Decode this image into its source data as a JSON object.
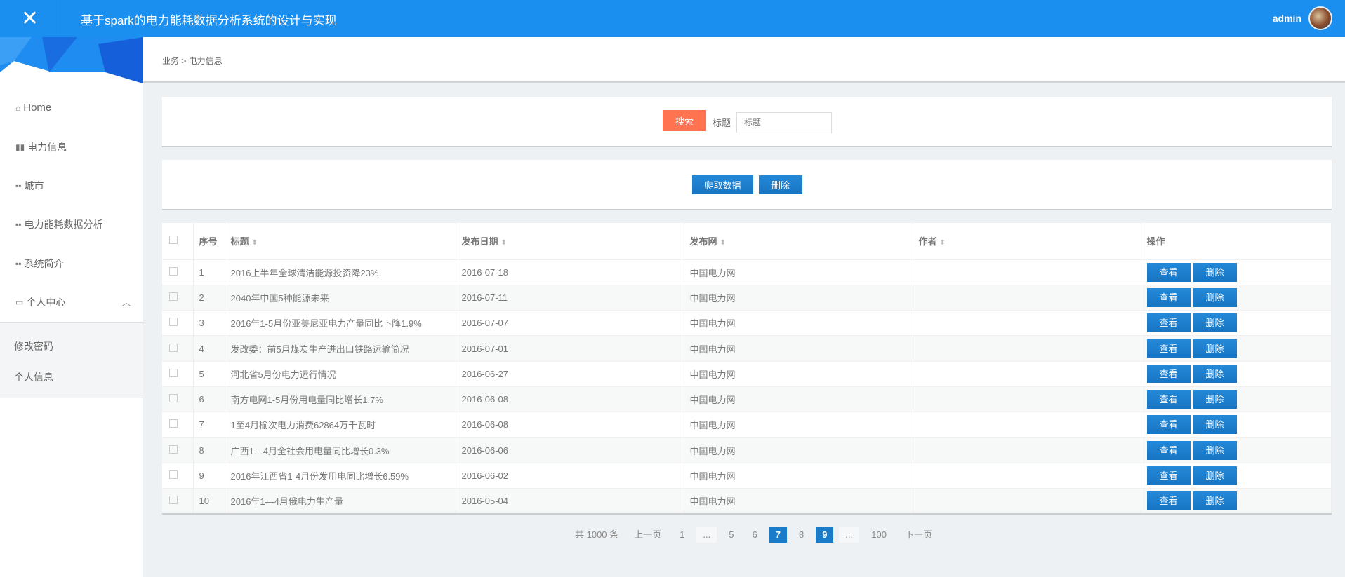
{
  "header": {
    "title": "基于spark的电力能耗数据分析系统的设计与实现",
    "user": "admin"
  },
  "sidebar": {
    "items": [
      {
        "label": "Home",
        "icon": "home-icon"
      },
      {
        "label": "电力信息",
        "icon": "bar-chart-icon"
      },
      {
        "label": "城市",
        "icon": "grid-icon"
      },
      {
        "label": "电力能耗数据分析",
        "icon": "grid-icon"
      },
      {
        "label": "系统简介",
        "icon": "grid-icon"
      },
      {
        "label": "个人中心",
        "icon": "card-icon"
      }
    ],
    "sub_items": [
      "修改密码",
      "个人信息"
    ]
  },
  "breadcrumb": "业务 > 电力信息",
  "search": {
    "button": "搜索",
    "label": "标题",
    "placeholder": "标题"
  },
  "actions": {
    "crawl": "爬取数据",
    "delete": "删除"
  },
  "table": {
    "headers": [
      "序号",
      "标题",
      "发布日期",
      "发布网",
      "作者",
      "操作"
    ],
    "rows": [
      [
        "1",
        "2016上半年全球清洁能源投资降23%",
        "2016-07-18",
        "中国电力网",
        ""
      ],
      [
        "2",
        "2040年中国5种能源未来",
        "2016-07-11",
        "中国电力网",
        ""
      ],
      [
        "3",
        "2016年1-5月份亚美尼亚电力产量同比下降1.9%",
        "2016-07-07",
        "中国电力网",
        ""
      ],
      [
        "4",
        "发改委：前5月煤炭生产进出口铁路运输简况",
        "2016-07-01",
        "中国电力网",
        ""
      ],
      [
        "5",
        "河北省5月份电力运行情况",
        "2016-06-27",
        "中国电力网",
        ""
      ],
      [
        "6",
        "南方电网1-5月份用电量同比增长1.7%",
        "2016-06-08",
        "中国电力网",
        ""
      ],
      [
        "7",
        "1至4月榆次电力消费62864万千瓦时",
        "2016-06-08",
        "中国电力网",
        ""
      ],
      [
        "8",
        "广西1—4月全社会用电量同比增长0.3%",
        "2016-06-06",
        "中国电力网",
        ""
      ],
      [
        "9",
        "2016年江西省1-4月份发用电同比增长6.59%",
        "2016-06-02",
        "中国电力网",
        ""
      ],
      [
        "10",
        "2016年1—4月俄电力生产量",
        "2016-05-04",
        "中国电力网",
        ""
      ]
    ],
    "view": "查看",
    "delete": "删除"
  },
  "pagination": {
    "total": "共 1000 条",
    "prev": "上一页",
    "next": "下一页",
    "pages": [
      "1",
      "...",
      "5",
      "6",
      "7",
      "8",
      "9",
      "...",
      "100"
    ],
    "current": "7",
    "hover": "9"
  },
  "colors": {
    "header": "#1a8ff0",
    "primary": "#1a7bc9",
    "search": "#ff7350"
  }
}
